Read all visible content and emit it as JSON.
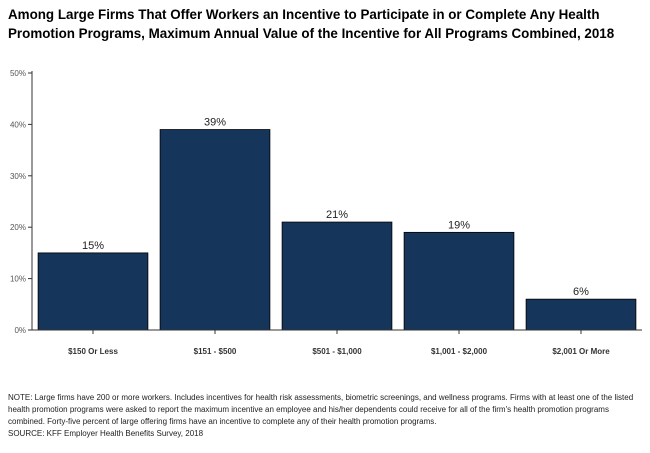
{
  "title": "Among Large Firms That Offer Workers an Incentive to Participate in or Complete Any Health Promotion Programs, Maximum Annual Value of the Incentive for All Programs Combined, 2018",
  "chart_data": {
    "type": "bar",
    "title": "Among Large Firms That Offer Workers an Incentive to Participate in or Complete Any Health Promotion Programs, Maximum Annual Value of the Incentive for All Programs Combined, 2018",
    "categories": [
      "$150 Or Less",
      "$151 - $500",
      "$501 - $1,000",
      "$1,001 - $2,000",
      "$2,001 Or More"
    ],
    "values": [
      15,
      39,
      21,
      19,
      6
    ],
    "data_labels": [
      "15%",
      "39%",
      "21%",
      "19%",
      "6%"
    ],
    "xlabel": "",
    "ylabel": "",
    "ylim": [
      0,
      50
    ],
    "yticks": [
      0,
      10,
      20,
      30,
      40,
      50
    ],
    "ytick_labels": [
      "0%",
      "10%",
      "20%",
      "30%",
      "40%",
      "50%"
    ],
    "grid": false,
    "legend": "none",
    "bar_color": "#16355a"
  },
  "notes": {
    "note": "NOTE: Large firms have 200 or more workers. Includes incentives for health risk assessments, biometric screenings, and wellness programs. Firms with at least one of the listed health promotion programs were asked to report the maximum incentive an employee and his/her dependents could receive for all of the firm's health promotion programs combined. Forty-five percent of large offering firms have an incentive to complete any of their health promotion programs.",
    "source": "SOURCE: KFF Employer Health Benefits Survey, 2018"
  }
}
